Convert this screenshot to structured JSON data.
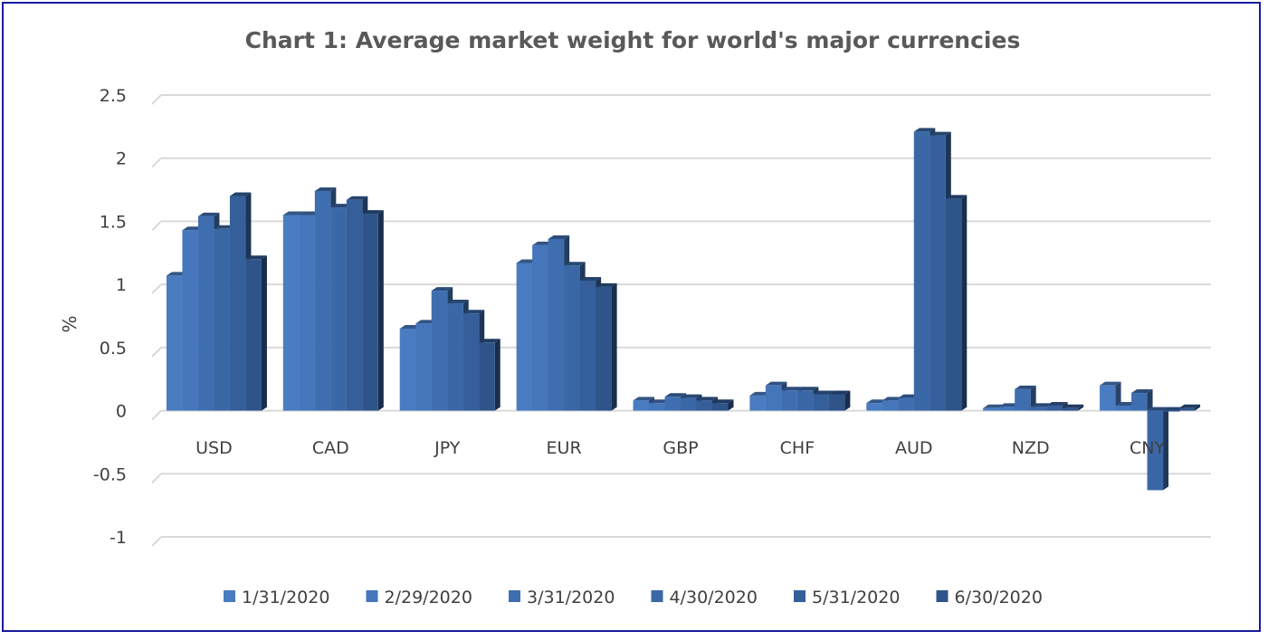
{
  "chart_data": {
    "type": "bar",
    "title": "Chart 1: Average market weight for world's major currencies",
    "xlabel": "",
    "ylabel": "%",
    "categories": [
      "USD",
      "CAD",
      "JPY",
      "EUR",
      "GBP",
      "CHF",
      "AUD",
      "NZD",
      "CNY"
    ],
    "ylim": [
      -1,
      2.5
    ],
    "yticks": [
      2.5,
      2,
      1.5,
      1,
      0.5,
      0,
      -0.5,
      -1
    ],
    "ytick_labels": [
      "2.5",
      "2",
      "1.5",
      "1",
      "0.5",
      "0",
      "-0.5",
      "-1"
    ],
    "grid": true,
    "legend_position": "bottom",
    "series": [
      {
        "name": "1/31/2020",
        "color": "#4a7cc1",
        "values": [
          1.07,
          1.55,
          0.65,
          1.17,
          0.08,
          0.12,
          0.06,
          0.02,
          0.2
        ]
      },
      {
        "name": "2/29/2020",
        "color": "#4576bb",
        "values": [
          1.43,
          1.55,
          0.69,
          1.31,
          0.06,
          0.2,
          0.08,
          0.03,
          0.04
        ]
      },
      {
        "name": "3/31/2020",
        "color": "#3f6eb0",
        "values": [
          1.54,
          1.74,
          0.95,
          1.36,
          0.11,
          0.16,
          0.1,
          0.17,
          0.14
        ]
      },
      {
        "name": "4/30/2020",
        "color": "#3a67a6",
        "values": [
          1.44,
          1.61,
          0.85,
          1.15,
          0.1,
          0.16,
          2.21,
          0.03,
          -0.63
        ]
      },
      {
        "name": "5/31/2020",
        "color": "#355f9b",
        "values": [
          1.7,
          1.67,
          0.77,
          1.03,
          0.08,
          0.13,
          2.18,
          0.04,
          0.0
        ]
      },
      {
        "name": "6/30/2020",
        "color": "#2e548a",
        "values": [
          1.2,
          1.56,
          0.54,
          0.98,
          0.06,
          0.13,
          1.68,
          0.02,
          0.02
        ]
      }
    ]
  }
}
